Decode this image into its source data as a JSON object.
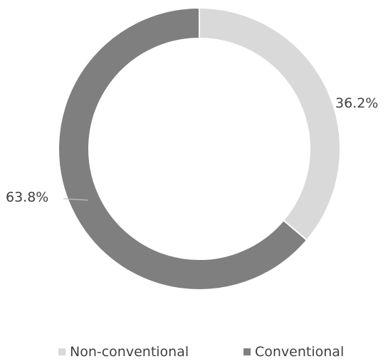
{
  "chart_data": {
    "type": "pie",
    "variant": "donut",
    "categories": [
      "Non-conventional",
      "Conventional"
    ],
    "values": [
      36.2,
      63.8
    ],
    "labels": [
      "36.2%",
      "63.8%"
    ],
    "colors": [
      "#d9d9d9",
      "#7f7f7f"
    ],
    "legend_position": "bottom",
    "title": ""
  }
}
